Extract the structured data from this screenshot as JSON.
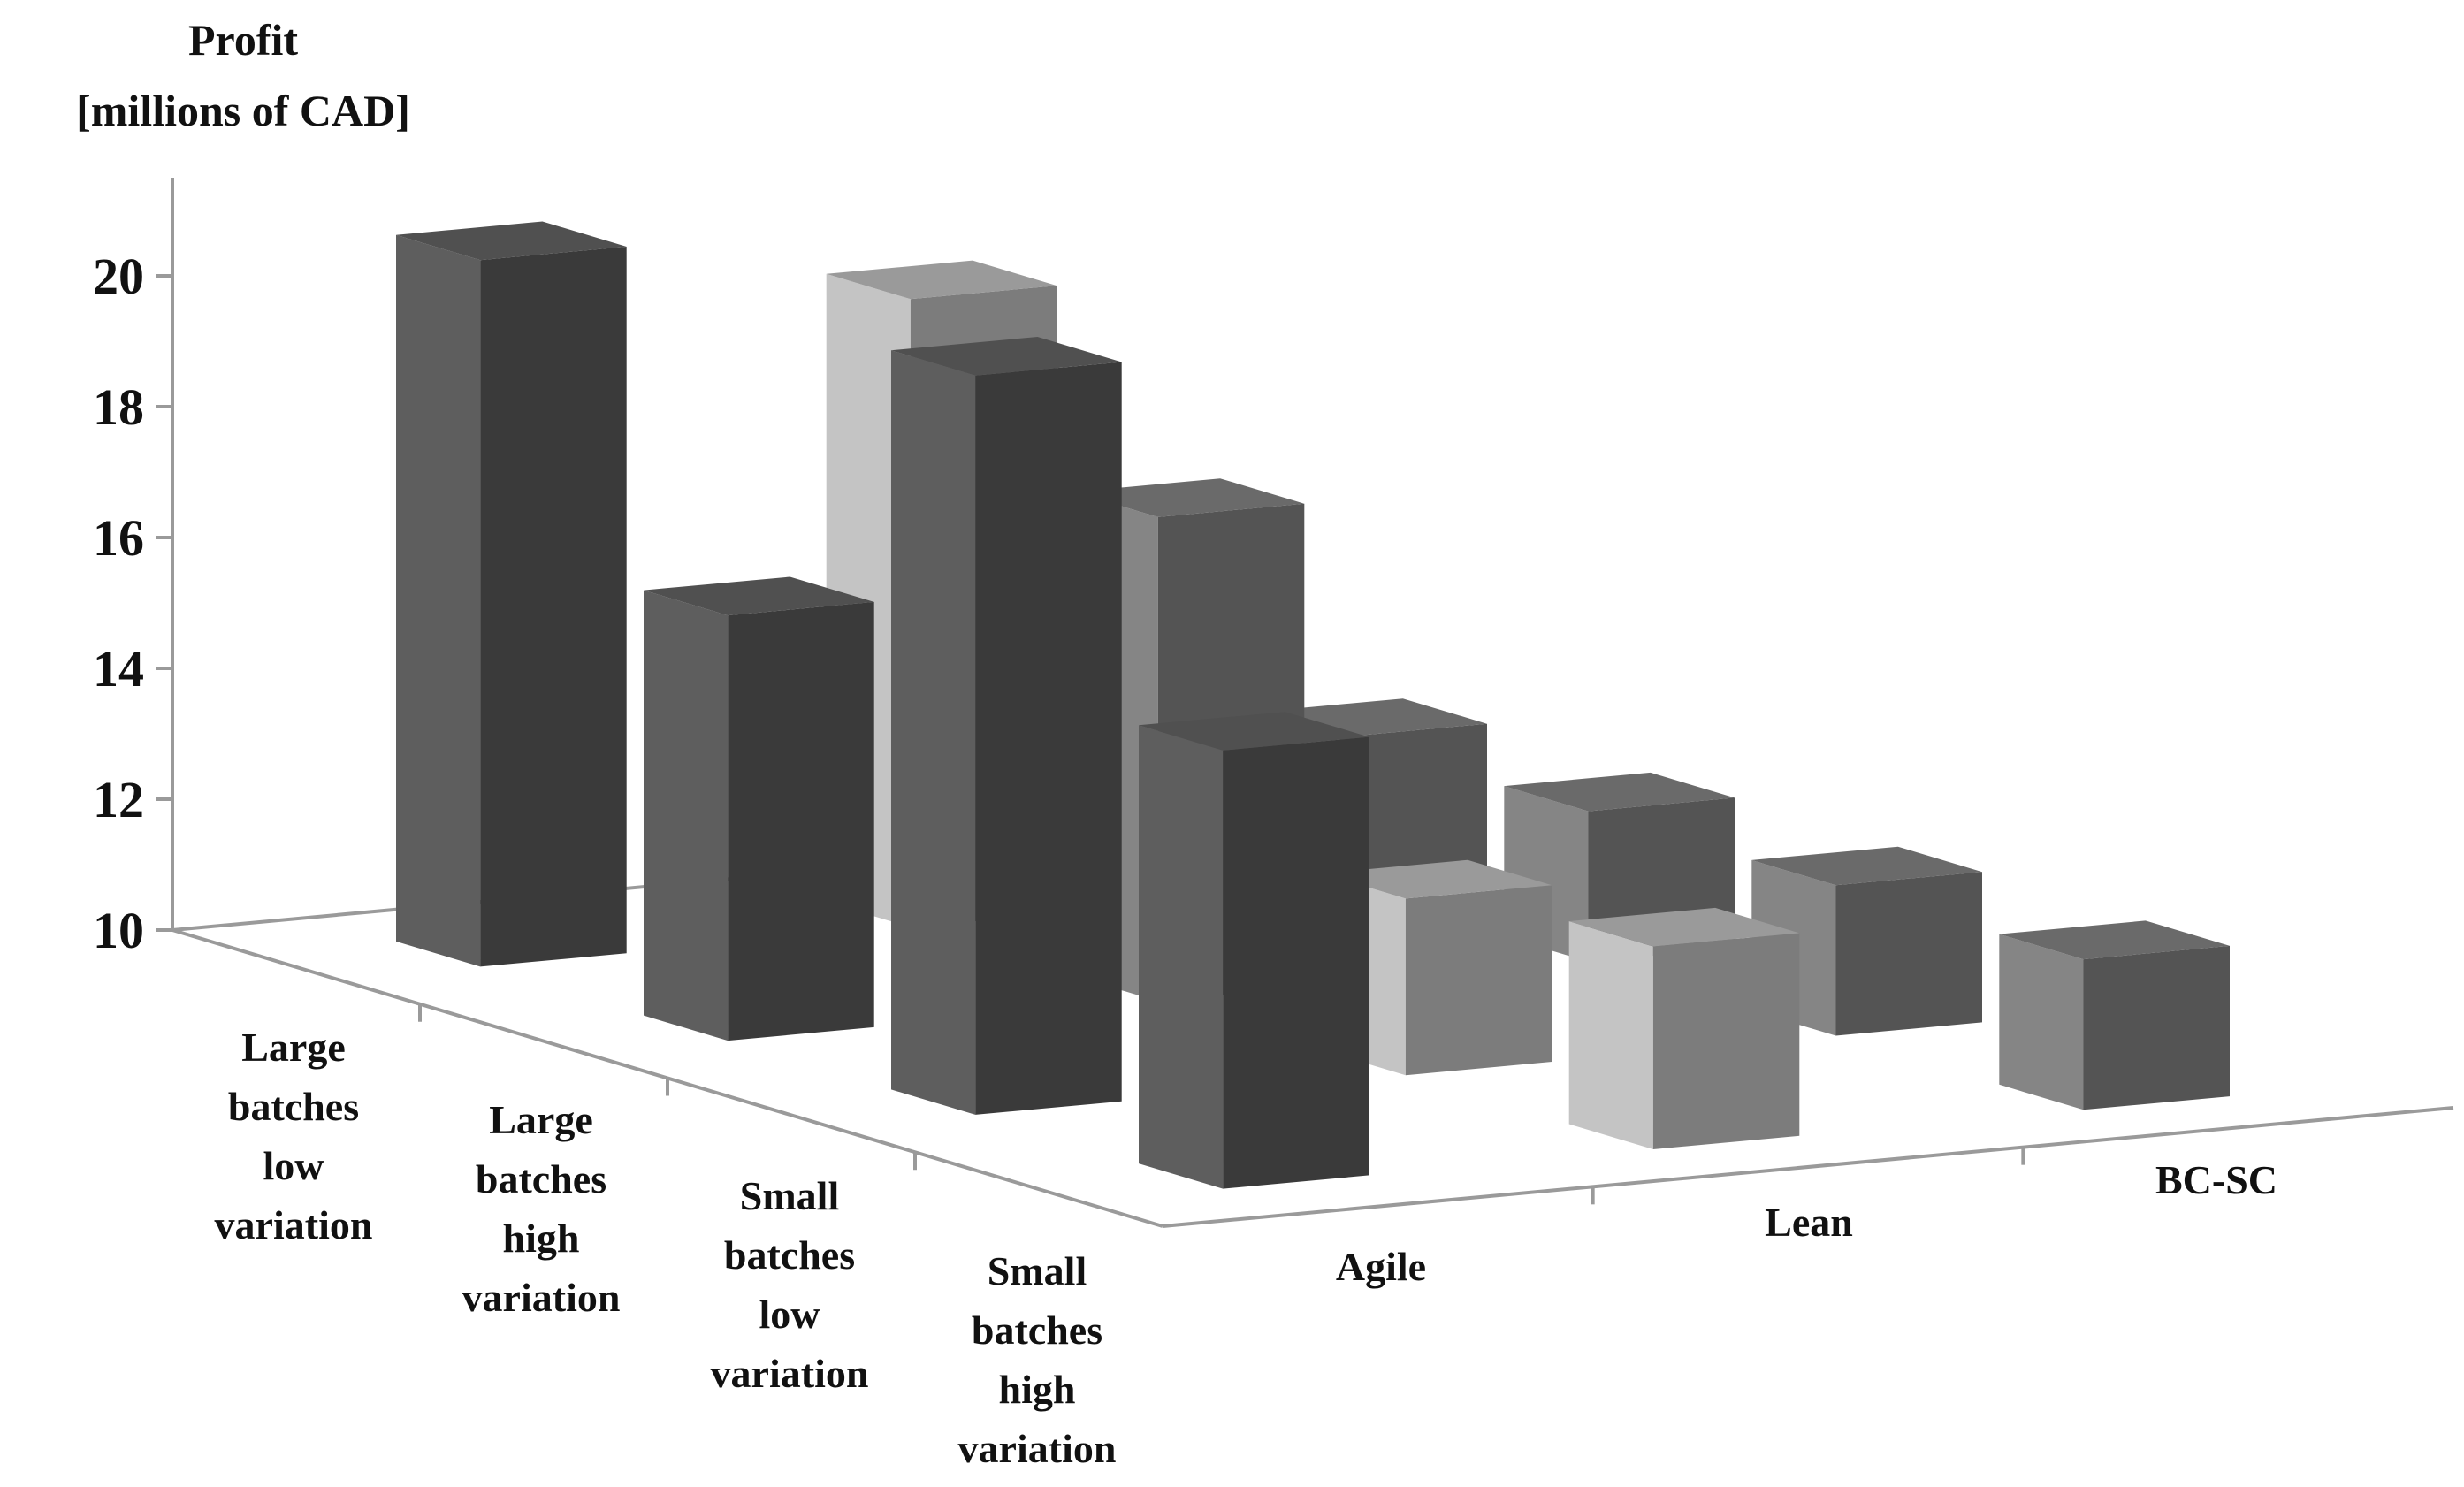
{
  "chart_data": {
    "type": "bar",
    "variant": "3d-column",
    "title": "",
    "ylabel_lines": [
      "Profit",
      "[millions of CAD]"
    ],
    "yticks": [
      "10",
      "12",
      "14",
      "16",
      "18",
      "20"
    ],
    "ylim": [
      10,
      21.5
    ],
    "scenarios": [
      [
        "Large",
        "batches",
        "low",
        "variation"
      ],
      [
        "Large",
        "batches",
        "high",
        "variation"
      ],
      [
        "Small",
        "batches",
        "low",
        "variation"
      ],
      [
        "Small",
        "batches",
        "high",
        "variation"
      ]
    ],
    "strategies": [
      "Agile",
      "Lean",
      "BC-SC"
    ],
    "series": [
      {
        "strategy": "Agile",
        "values": [
          20.8,
          16.5,
          21.3,
          16.7
        ]
      },
      {
        "strategy": "Lean",
        "values": [
          19.6,
          17.4,
          12.7,
          13.1
        ]
      },
      {
        "strategy": "BC-SC",
        "values": [
          12.3,
          12.3,
          12.3,
          12.3
        ]
      }
    ],
    "bar_colors": {
      "dark": {
        "top": "#505050",
        "front": "#5e5e5e",
        "side": "#3a3a3a"
      },
      "medium": {
        "top": "#6a6a6a",
        "front": "#858585",
        "side": "#545454"
      },
      "light": {
        "top": "#9a9a9a",
        "front": "#c4c4c4",
        "side": "#7c7c7c"
      }
    },
    "bar_shades": [
      [
        "dark",
        "light",
        "medium"
      ],
      [
        "dark",
        "medium",
        "medium"
      ],
      [
        "dark",
        "light",
        "medium"
      ],
      [
        "dark",
        "light",
        "medium"
      ]
    ],
    "grid": false,
    "legend": "none"
  }
}
